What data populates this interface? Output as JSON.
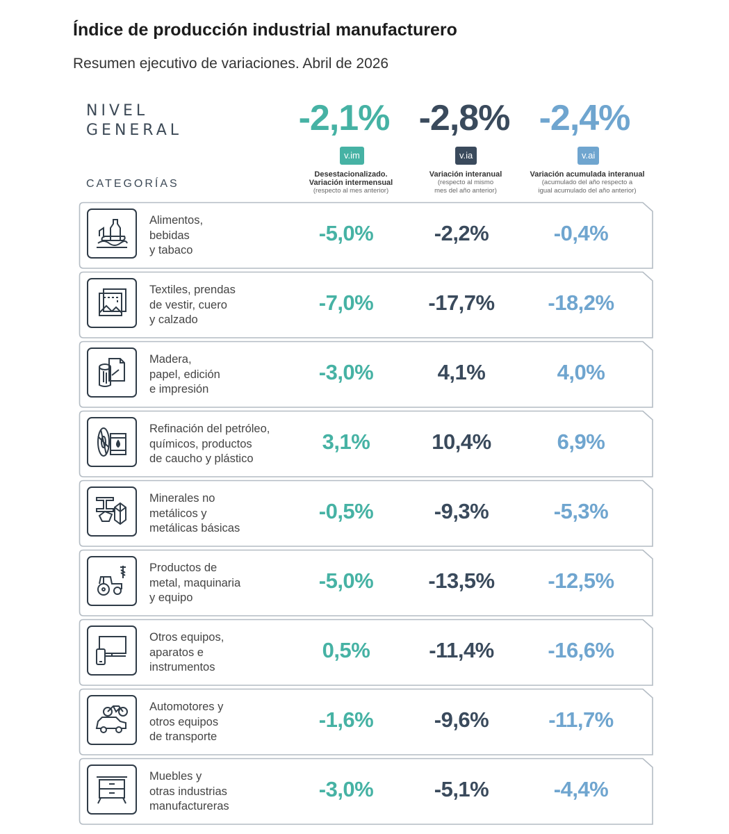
{
  "header": {
    "title": "Índice de producción industrial manufacturero",
    "subtitle": "Resumen ejecutivo de variaciones. Abril de 2026",
    "nivel_line1": "NIVEL",
    "nivel_line2": "GENERAL",
    "categorias": "CATEGORÍAS"
  },
  "general": {
    "vim": "-2,1%",
    "via": "-2,8%",
    "vai": "-2,4%"
  },
  "columns": [
    {
      "badge": "v.im",
      "title": "Desestacionalizado.",
      "title2": "Variación intermensual",
      "note": "(respecto al mes anterior)",
      "note2": ""
    },
    {
      "badge": "v.ia",
      "title": "Variación interanual",
      "title2": "",
      "note": "(respecto al mismo",
      "note2": "mes del año anterior)"
    },
    {
      "badge": "v.ai",
      "title": "Variación acumulada interanual",
      "title2": "",
      "note": "(acumulado del año respecto a",
      "note2": "igual acumulado del año anterior)"
    }
  ],
  "colors": {
    "vim": "#46b2a4",
    "via": "#3a4a5c",
    "vai": "#6fa5cf"
  },
  "categories": [
    {
      "icon": "food-icon",
      "l1": "Alimentos,",
      "l2": "bebidas",
      "l3": "y tabaco",
      "vim": "-5,0%",
      "via": "-2,2%",
      "vai": "-0,4%"
    },
    {
      "icon": "textile-icon",
      "l1": "Textiles, prendas",
      "l2": "de vestir, cuero",
      "l3": "y calzado",
      "vim": "-7,0%",
      "via": "-17,7%",
      "vai": "-18,2%"
    },
    {
      "icon": "wood-paper-icon",
      "l1": "Madera,",
      "l2": "papel, edición",
      "l3": "e impresión",
      "vim": "-3,0%",
      "via": "4,1%",
      "vai": "4,0%"
    },
    {
      "icon": "petroleum-icon",
      "l1": "Refinación del petróleo,",
      "l2": "químicos, productos",
      "l3": "de caucho y plástico",
      "vim": "3,1%",
      "via": "10,4%",
      "vai": "6,9%"
    },
    {
      "icon": "minerals-icon",
      "l1": "Minerales no",
      "l2": "metálicos y",
      "l3": "metálicas básicas",
      "vim": "-0,5%",
      "via": "-9,3%",
      "vai": "-5,3%"
    },
    {
      "icon": "tractor-icon",
      "l1": "Productos de",
      "l2": "metal, maquinaria",
      "l3": "y equipo",
      "vim": "-5,0%",
      "via": "-13,5%",
      "vai": "-12,5%"
    },
    {
      "icon": "monitor-icon",
      "l1": "Otros equipos,",
      "l2": "aparatos e",
      "l3": "instrumentos",
      "vim": "0,5%",
      "via": "-11,4%",
      "vai": "-16,6%"
    },
    {
      "icon": "vehicle-icon",
      "l1": "Automotores y",
      "l2": "otros equipos",
      "l3": "de transporte",
      "vim": "-1,6%",
      "via": "-9,6%",
      "vai": "-11,7%"
    },
    {
      "icon": "furniture-icon",
      "l1": "Muebles y",
      "l2": "otras industrias",
      "l3": "manufactureras",
      "vim": "-3,0%",
      "via": "-5,1%",
      "vai": "-4,4%"
    }
  ]
}
